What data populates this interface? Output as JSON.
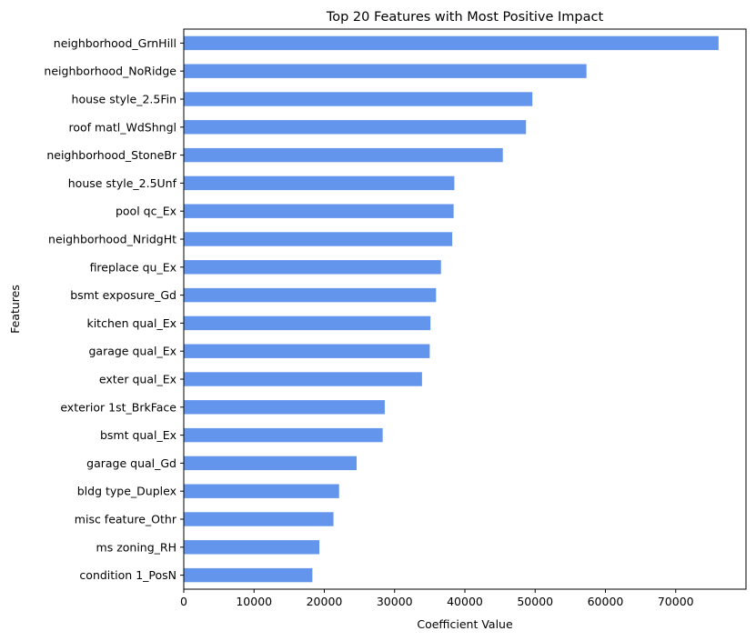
{
  "chart_data": {
    "type": "bar",
    "orientation": "horizontal",
    "title": "Top 20 Features with Most Positive Impact",
    "xlabel": "Coefficient Value",
    "ylabel": "Features",
    "xlim": [
      0,
      80000
    ],
    "xticks": [
      0,
      10000,
      20000,
      30000,
      40000,
      50000,
      60000,
      70000
    ],
    "xtick_labels": [
      "0",
      "10000",
      "20000",
      "30000",
      "40000",
      "50000",
      "60000",
      "70000"
    ],
    "grid": false,
    "bar_color": "#6495ED",
    "categories": [
      "neighborhood_GrnHill",
      "neighborhood_NoRidge",
      "house style_2.5Fin",
      "roof matl_WdShngl",
      "neighborhood_StoneBr",
      "house style_2.5Unf",
      "pool qc_Ex",
      "neighborhood_NridgHt",
      "fireplace qu_Ex",
      "bsmt exposure_Gd",
      "kitchen qual_Ex",
      "garage qual_Ex",
      "exter qual_Ex",
      "exterior 1st_BrkFace",
      "bsmt qual_Ex",
      "garage qual_Gd",
      "bldg type_Duplex",
      "misc feature_Othr",
      "ms zoning_RH",
      "condition 1_PosN"
    ],
    "values": [
      76100,
      57300,
      49600,
      48700,
      45400,
      38500,
      38400,
      38200,
      36600,
      35900,
      35100,
      35000,
      33900,
      28600,
      28300,
      24600,
      22100,
      21300,
      19300,
      18300
    ]
  }
}
